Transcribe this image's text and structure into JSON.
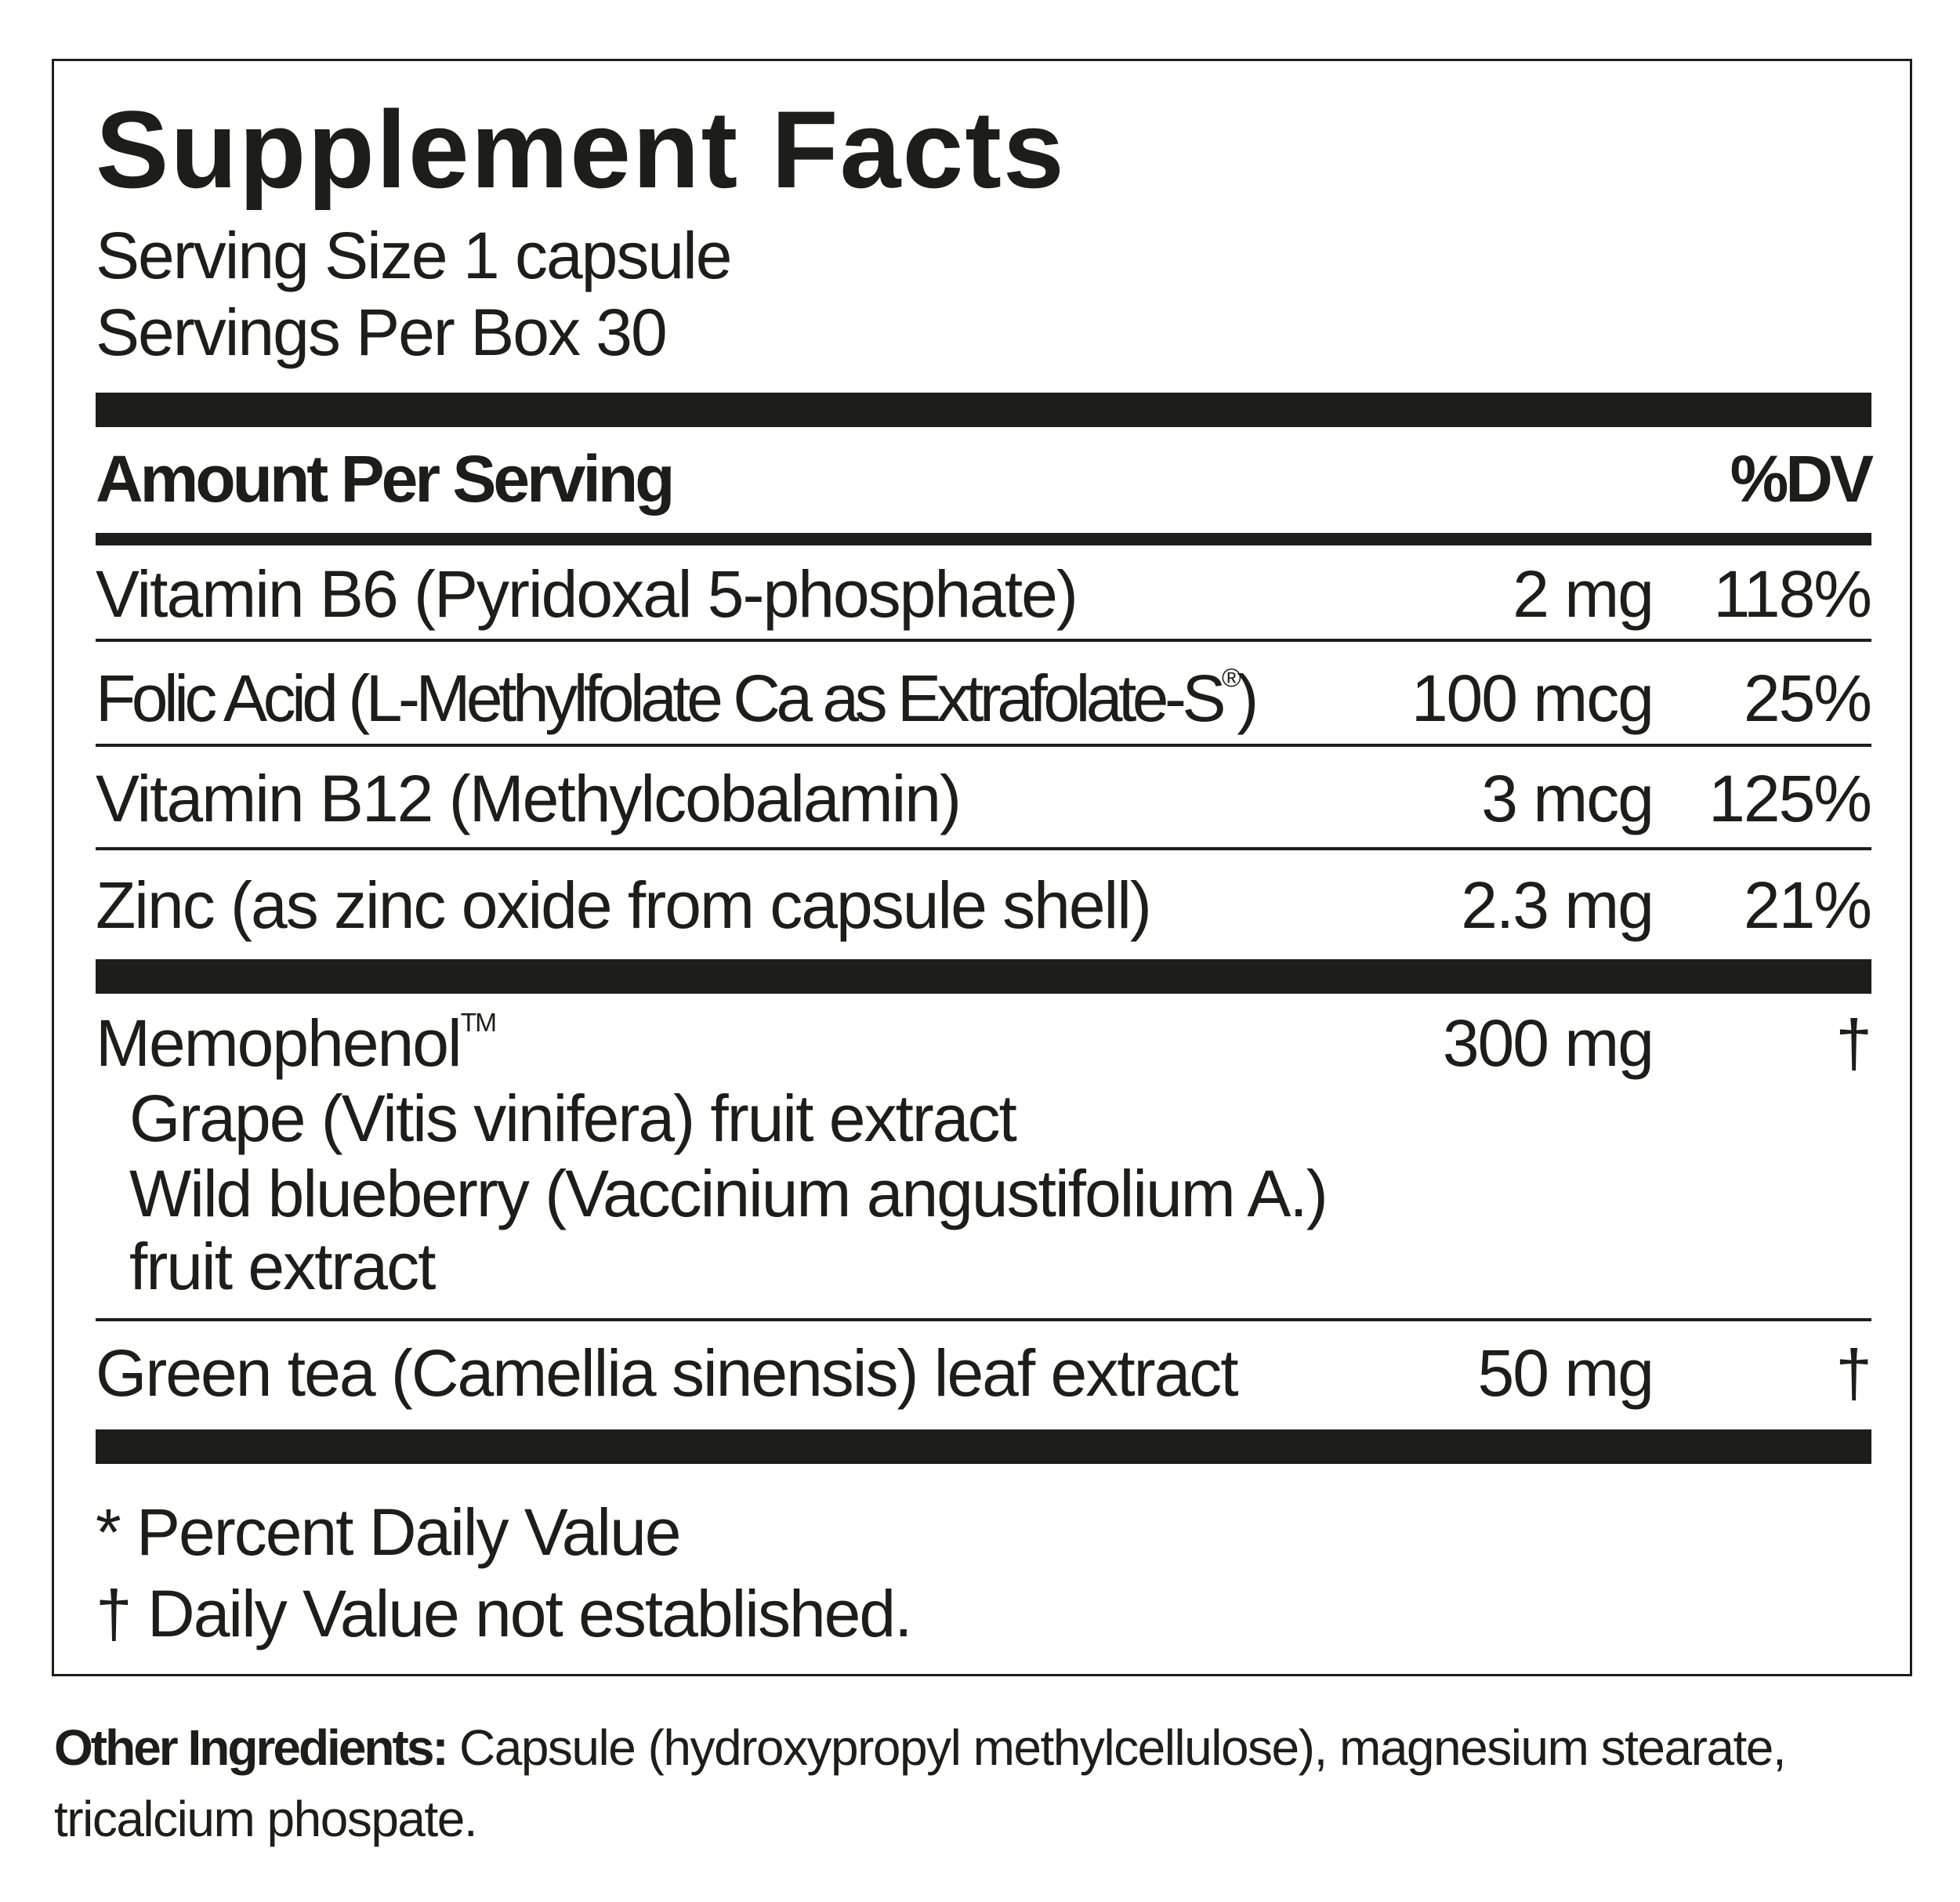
{
  "title": "Supplement Facts",
  "serving_size": "Serving Size 1 capsule",
  "servings_per": "Servings Per Box 30",
  "header": {
    "amount": "Amount Per Serving",
    "dv": "%DV"
  },
  "nutrients": [
    {
      "name": "Vitamin B6 (Pyridoxal 5-phosphate)",
      "amount": "2 mg",
      "dv": "118%"
    },
    {
      "name": "Folic Acid (L-Methylfolate Ca as Extrafolate-S",
      "mark": "®",
      "name_end": ")",
      "amount": "100 mcg",
      "dv": "25%"
    },
    {
      "name": "Vitamin B12 (Methylcobalamin)",
      "amount": "3 mcg",
      "dv": "125%"
    },
    {
      "name": "Zinc (as zinc oxide from capsule shell)",
      "amount": "2.3 mg",
      "dv": "21%"
    }
  ],
  "blend": {
    "name": "Memophenol",
    "mark": "TM",
    "amount": "300 mg",
    "dv": "†",
    "components": [
      "Grape (Vitis vinifera) fruit extract",
      "Wild blueberry (Vaccinium angustifolium A.)",
      "fruit extract"
    ]
  },
  "green_tea": {
    "name": "Green tea (Camellia sinensis) leaf extract",
    "amount": "50 mg",
    "dv": "†"
  },
  "footnotes": [
    "* Percent Daily Value",
    "† Daily Value not established."
  ],
  "other_ingredients": {
    "label": "Other Ingredients:",
    "text": " Capsule (hydroxypropyl methylcellulose), magnesium stearate, tricalcium phospate."
  }
}
